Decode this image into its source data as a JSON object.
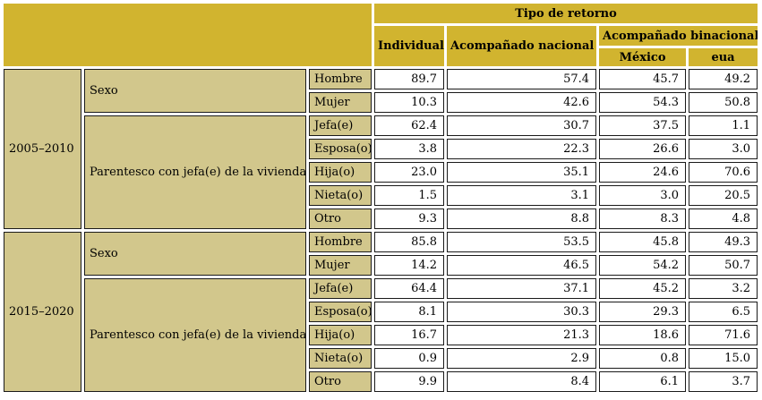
{
  "chart_data": {
    "type": "table",
    "title": "Tipo de retorno",
    "header": {
      "top": "Tipo de retorno",
      "col_individual": "Individual",
      "col_nacional": "Acompañado nacional",
      "col_binacional": "Acompañado binacional",
      "col_mexico": "México",
      "col_eua": "eua"
    },
    "columns": [
      "Individual",
      "Acompañado nacional",
      "Acompañado binacional — México",
      "Acompañado binacional — eua"
    ],
    "periods": [
      {
        "label": "2005–2010",
        "groups": [
          {
            "label": "Sexo",
            "rows": [
              {
                "label": "Hombre",
                "values": [
                  "89.7",
                  "57.4",
                  "45.7",
                  "49.2"
                ]
              },
              {
                "label": "Mujer",
                "values": [
                  "10.3",
                  "42.6",
                  "54.3",
                  "50.8"
                ]
              }
            ]
          },
          {
            "label": "Parentesco con jefa(e) de la vivienda",
            "rows": [
              {
                "label": "Jefa(e)",
                "values": [
                  "62.4",
                  "30.7",
                  "37.5",
                  "1.1"
                ]
              },
              {
                "label": "Esposa(o)",
                "values": [
                  "3.8",
                  "22.3",
                  "26.6",
                  "3.0"
                ]
              },
              {
                "label": "Hija(o)",
                "values": [
                  "23.0",
                  "35.1",
                  "24.6",
                  "70.6"
                ]
              },
              {
                "label": "Nieta(o)",
                "values": [
                  "1.5",
                  "3.1",
                  "3.0",
                  "20.5"
                ]
              },
              {
                "label": "Otro",
                "values": [
                  "9.3",
                  "8.8",
                  "8.3",
                  "4.8"
                ]
              }
            ]
          }
        ]
      },
      {
        "label": "2015–2020",
        "groups": [
          {
            "label": "Sexo",
            "rows": [
              {
                "label": "Hombre",
                "values": [
                  "85.8",
                  "53.5",
                  "45.8",
                  "49.3"
                ]
              },
              {
                "label": "Mujer",
                "values": [
                  "14.2",
                  "46.5",
                  "54.2",
                  "50.7"
                ]
              }
            ]
          },
          {
            "label": "Parentesco con jefa(e) de la vivienda",
            "rows": [
              {
                "label": "Jefa(e)",
                "values": [
                  "64.4",
                  "37.1",
                  "45.2",
                  "3.2"
                ]
              },
              {
                "label": "Esposa(o)",
                "values": [
                  "8.1",
                  "30.3",
                  "29.3",
                  "6.5"
                ]
              },
              {
                "label": "Hija(o)",
                "values": [
                  "16.7",
                  "21.3",
                  "18.6",
                  "71.6"
                ]
              },
              {
                "label": "Nieta(o)",
                "values": [
                  "0.9",
                  "2.9",
                  "0.8",
                  "15.0"
                ]
              },
              {
                "label": "Otro",
                "values": [
                  "9.9",
                  "8.4",
                  "6.1",
                  "3.7"
                ]
              }
            ]
          }
        ]
      }
    ],
    "colors": {
      "header_bg": "#d1b42f",
      "label_bg": "#d2c78c",
      "data_bg": "#ffffff",
      "border": "#1a1a1a",
      "text": "#000000"
    }
  }
}
